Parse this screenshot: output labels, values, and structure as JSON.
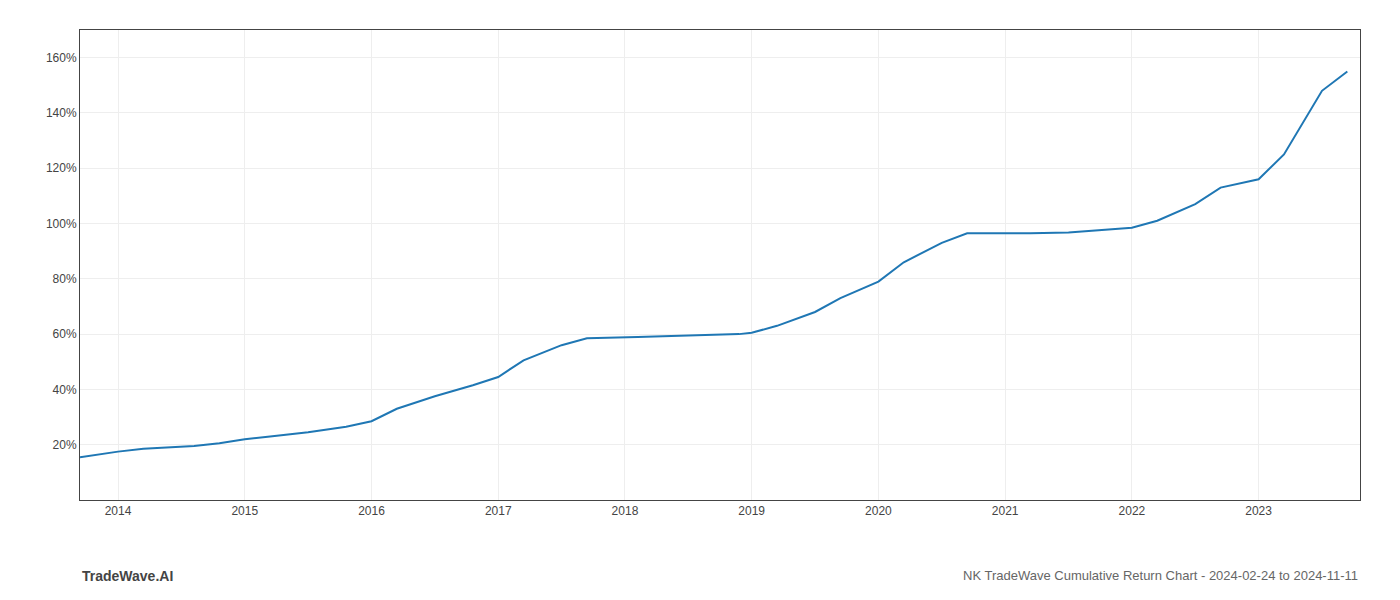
{
  "chart_data": {
    "type": "line",
    "title": "NK TradeWave Cumulative Return Chart - 2024-02-24 to 2024-11-11",
    "annotations": [
      "TradeWave.AI"
    ],
    "x": [
      2013.7,
      2013.85,
      2014.0,
      2014.2,
      2014.4,
      2014.6,
      2014.8,
      2015.0,
      2015.2,
      2015.5,
      2015.8,
      2016.0,
      2016.2,
      2016.5,
      2016.8,
      2017.0,
      2017.2,
      2017.5,
      2017.7,
      2018.0,
      2018.1,
      2018.3,
      2018.5,
      2018.7,
      2018.9,
      2019.0,
      2019.2,
      2019.5,
      2019.7,
      2020.0,
      2020.2,
      2020.5,
      2020.7,
      2021.0,
      2021.2,
      2021.5,
      2021.7,
      2022.0,
      2022.2,
      2022.5,
      2022.7,
      2023.0,
      2023.2,
      2023.5,
      2023.7
    ],
    "values": [
      15.5,
      16.5,
      17.5,
      18.5,
      19.0,
      19.5,
      20.5,
      22.0,
      23.0,
      24.5,
      26.5,
      28.5,
      33.0,
      37.5,
      41.5,
      44.5,
      50.5,
      56.0,
      58.5,
      59.0,
      59.0,
      59.2,
      59.5,
      59.8,
      60.0,
      60.5,
      63.0,
      68.0,
      73.0,
      79.0,
      86.0,
      93.0,
      96.5,
      96.5,
      96.5,
      96.8,
      97.5,
      98.5,
      101.0,
      107.0,
      113.0,
      116.0,
      125.0,
      148.0,
      155.0
    ],
    "xlim": [
      2013.7,
      2023.8
    ],
    "xticks": [
      2014,
      2015,
      2016,
      2017,
      2018,
      2019,
      2020,
      2021,
      2022,
      2023
    ],
    "ylim": [
      0,
      170
    ],
    "yticks": [
      {
        "value": 20,
        "label": "20%"
      },
      {
        "value": 40,
        "label": "40%"
      },
      {
        "value": 60,
        "label": "60%"
      },
      {
        "value": 80,
        "label": "80%"
      },
      {
        "value": 100,
        "label": "100%"
      },
      {
        "value": 120,
        "label": "120%"
      },
      {
        "value": 140,
        "label": "140%"
      },
      {
        "value": 160,
        "label": "160%"
      }
    ],
    "grid": true
  }
}
